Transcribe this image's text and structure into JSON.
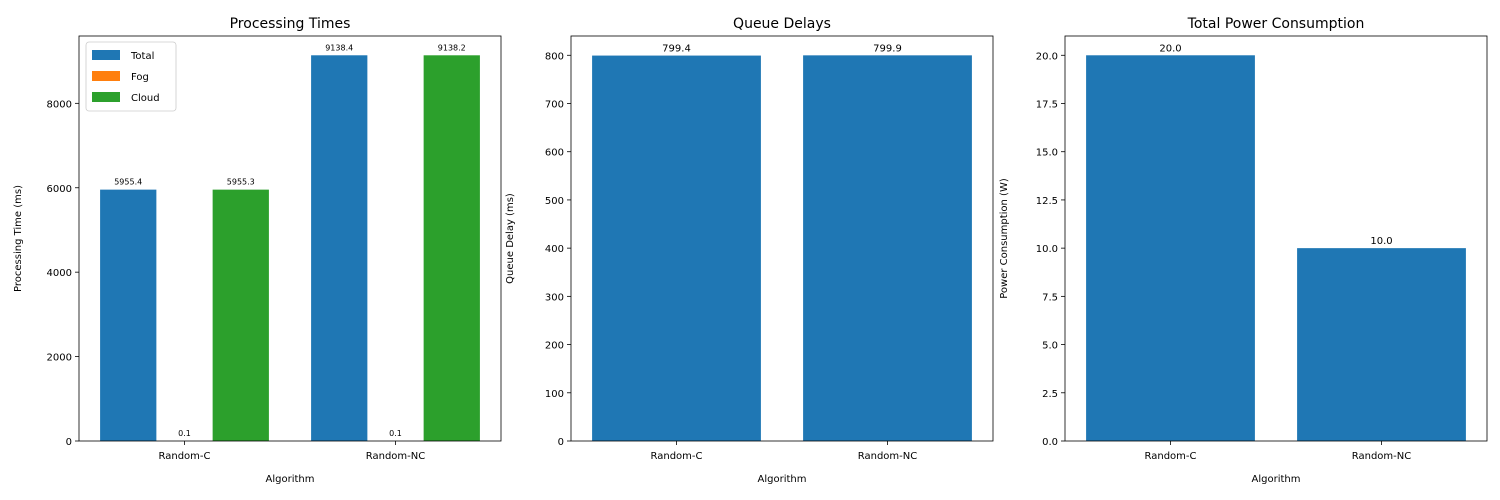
{
  "figure": {
    "colors": {
      "total": "#1f77b4",
      "fog": "#ff7f0e",
      "cloud": "#2ca02c"
    }
  },
  "chart_data": [
    {
      "type": "bar",
      "title": "Processing Times",
      "xlabel": "Algorithm",
      "ylabel": "Processing Time (ms)",
      "categories": [
        "Random-C",
        "Random-NC"
      ],
      "ylim": [
        0,
        9595.3
      ],
      "yticks": [
        0,
        2000,
        4000,
        6000,
        8000
      ],
      "series": [
        {
          "name": "Total",
          "color": "#1f77b4",
          "values": [
            5955.4,
            9138.4
          ]
        },
        {
          "name": "Fog",
          "color": "#ff7f0e",
          "values": [
            0.1,
            0.1
          ]
        },
        {
          "name": "Cloud",
          "color": "#2ca02c",
          "values": [
            5955.3,
            9138.2
          ]
        }
      ],
      "legend": "upper-left",
      "grid": false
    },
    {
      "type": "bar",
      "title": "Queue Delays",
      "xlabel": "Algorithm",
      "ylabel": "Queue Delay (ms)",
      "categories": [
        "Random-C",
        "Random-NC"
      ],
      "ylim": [
        0,
        840
      ],
      "yticks": [
        0,
        100,
        200,
        300,
        400,
        500,
        600,
        700,
        800
      ],
      "series": [
        {
          "color": "#1f77b4",
          "values": [
            799.4,
            799.9
          ]
        }
      ],
      "grid": false
    },
    {
      "type": "bar",
      "title": "Total Power Consumption",
      "xlabel": "Algorithm",
      "ylabel": "Power Consumption (W)",
      "categories": [
        "Random-C",
        "Random-NC"
      ],
      "ylim": [
        0,
        21
      ],
      "yticks": [
        0.0,
        2.5,
        5.0,
        7.5,
        10.0,
        12.5,
        15.0,
        17.5,
        20.0
      ],
      "series": [
        {
          "color": "#1f77b4",
          "values": [
            20.0,
            10.0
          ]
        }
      ],
      "grid": false
    }
  ]
}
